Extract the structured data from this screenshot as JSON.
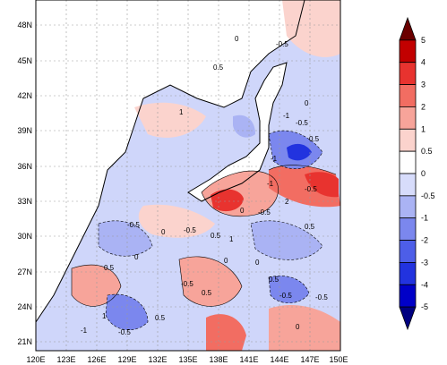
{
  "map": {
    "lon_ticks": [
      "120E",
      "123E",
      "126E",
      "129E",
      "132E",
      "135E",
      "138E",
      "141E",
      "144E",
      "147E",
      "150E"
    ],
    "lat_ticks": [
      "48N",
      "45N",
      "42N",
      "39N",
      "36N",
      "33N",
      "30N",
      "27N",
      "24N",
      "21N"
    ],
    "extent": {
      "lon_min": 120,
      "lon_max": 150,
      "lat_min": 20,
      "lat_max": 50
    },
    "contour_labels": [
      "0",
      "-0.5",
      "0.5",
      "1",
      "-1",
      "2",
      "-0.5",
      "0.5",
      "0",
      "-1",
      "-0.5",
      "0.5",
      "0",
      "-0.5",
      "1",
      "-1",
      "0.5",
      "0",
      "0.5",
      "-0.5",
      "-0.5",
      "0.5",
      "0",
      "0",
      "0.5",
      "1",
      "0.5",
      "-0.5",
      "-0.5",
      "0",
      "-1",
      "0",
      "-0.5",
      "-0.5"
    ]
  },
  "colorbar": {
    "labels": [
      "5",
      "4",
      "3",
      "2",
      "1",
      "0.5",
      "0",
      "-0.5",
      "-1",
      "-2",
      "-3",
      "-4",
      "-5"
    ],
    "colors": [
      "#6b0000",
      "#c20000",
      "#e8332f",
      "#f26d62",
      "#f7a49a",
      "#fbd3cd",
      "#ffffff",
      "#d7dcfb",
      "#aab3f4",
      "#7b87ee",
      "#4d5ee8",
      "#2233df",
      "#0000c8",
      "#000080"
    ]
  }
}
